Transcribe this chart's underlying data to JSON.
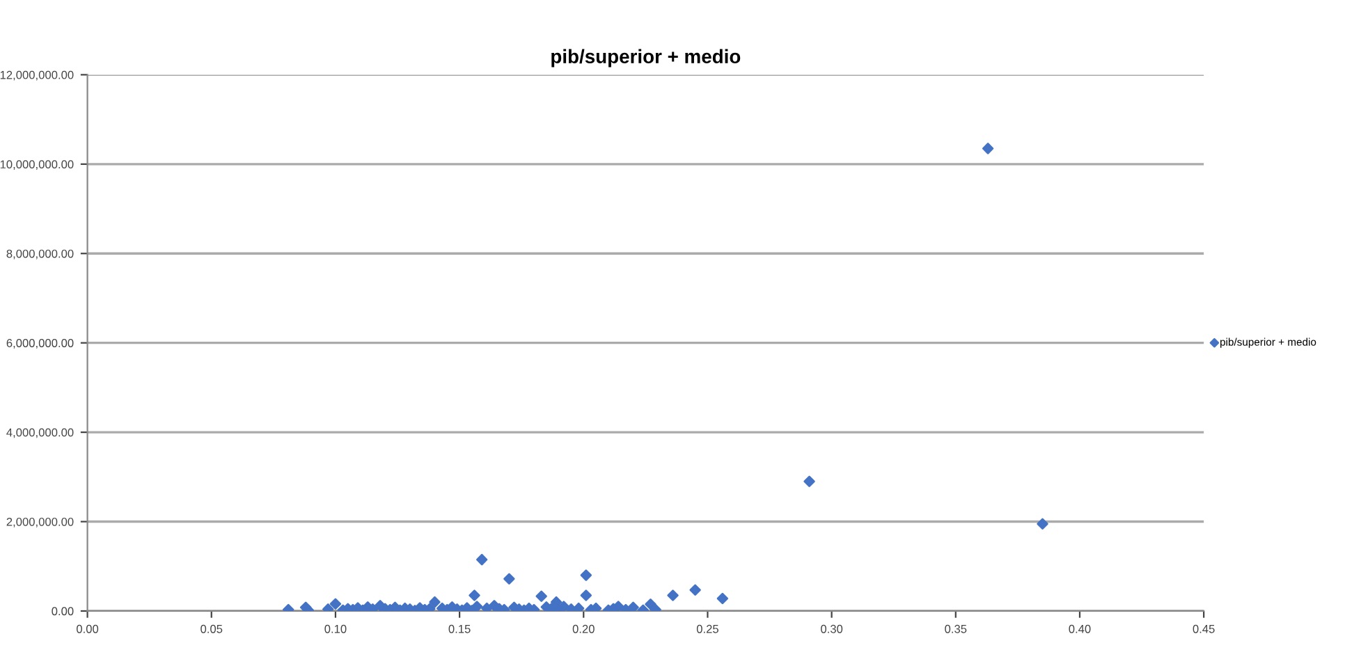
{
  "chart_data": {
    "type": "scatter",
    "title": "pib/superior + medio",
    "series": [
      {
        "name": "pib/superior + medio",
        "color": "#4472c4",
        "x": [
          0.081,
          0.088,
          0.089,
          0.097,
          0.1,
          0.103,
          0.105,
          0.107,
          0.109,
          0.111,
          0.113,
          0.115,
          0.118,
          0.12,
          0.122,
          0.124,
          0.126,
          0.128,
          0.13,
          0.132,
          0.134,
          0.136,
          0.138,
          0.14,
          0.143,
          0.145,
          0.147,
          0.149,
          0.151,
          0.153,
          0.155,
          0.156,
          0.157,
          0.159,
          0.161,
          0.164,
          0.166,
          0.168,
          0.17,
          0.172,
          0.174,
          0.176,
          0.178,
          0.18,
          0.183,
          0.185,
          0.187,
          0.189,
          0.19,
          0.192,
          0.195,
          0.198,
          0.201,
          0.201,
          0.203,
          0.205,
          0.21,
          0.212,
          0.214,
          0.217,
          0.22,
          0.224,
          0.227,
          0.229,
          0.236,
          0.245,
          0.256,
          0.291,
          0.363,
          0.385
        ],
        "values": [
          30000,
          80000,
          20000,
          40000,
          160000,
          20000,
          50000,
          30000,
          70000,
          20000,
          90000,
          40000,
          120000,
          50000,
          30000,
          80000,
          20000,
          60000,
          40000,
          10000,
          70000,
          30000,
          50000,
          200000,
          60000,
          30000,
          90000,
          40000,
          20000,
          70000,
          10000,
          350000,
          100000,
          1150000,
          60000,
          120000,
          50000,
          30000,
          720000,
          80000,
          40000,
          20000,
          60000,
          30000,
          330000,
          90000,
          50000,
          200000,
          20000,
          100000,
          40000,
          60000,
          800000,
          350000,
          30000,
          60000,
          20000,
          50000,
          100000,
          30000,
          80000,
          20000,
          150000,
          30000,
          350000,
          470000,
          280000,
          2900000,
          10350000,
          1950000
        ]
      }
    ],
    "marker": "diamond",
    "legend": "right",
    "xlim": [
      0,
      0.45
    ],
    "xticks": [
      {
        "value": 0,
        "label": "0.00"
      },
      {
        "value": 0.05,
        "label": "0.05"
      },
      {
        "value": 0.1,
        "label": "0.10"
      },
      {
        "value": 0.15,
        "label": "0.15"
      },
      {
        "value": 0.2,
        "label": "0.20"
      },
      {
        "value": 0.25,
        "label": "0.25"
      },
      {
        "value": 0.3,
        "label": "0.30"
      },
      {
        "value": 0.35,
        "label": "0.35"
      },
      {
        "value": 0.4,
        "label": "0.40"
      },
      {
        "value": 0.45,
        "label": "0.45"
      }
    ],
    "ylim": [
      0,
      12000000
    ],
    "yticks": [
      {
        "value": 0,
        "label": "0.00"
      },
      {
        "value": 2000000,
        "label": "2,000,000.00"
      },
      {
        "value": 4000000,
        "label": "4,000,000.00"
      },
      {
        "value": 6000000,
        "label": "6,000,000.00"
      },
      {
        "value": 8000000,
        "label": "8,000,000.00"
      },
      {
        "value": 10000000,
        "label": "10,000,000.00"
      },
      {
        "value": 12000000,
        "label": "12,000,000.00"
      }
    ],
    "grid": "y"
  }
}
